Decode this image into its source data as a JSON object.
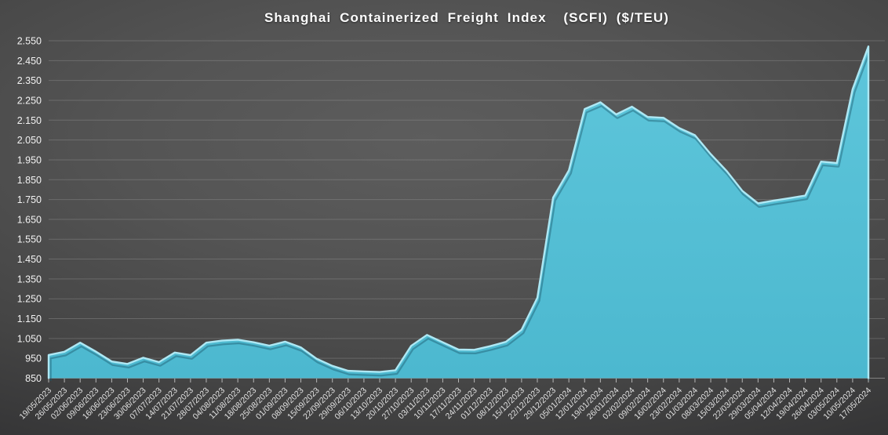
{
  "title": "Shanghai Containerized Freight Index  (SCFI) ($/TEU)",
  "chart_data": {
    "type": "area",
    "title": "Shanghai Containerized Freight Index  (SCFI) ($/TEU)",
    "xlabel": "",
    "ylabel": "",
    "ylim": [
      850,
      2550
    ],
    "y_tick_step": 100,
    "y_tick_labels": [
      "850",
      "950",
      "1.050",
      "1.150",
      "1.250",
      "1.350",
      "1.450",
      "1.550",
      "1.650",
      "1.750",
      "1.850",
      "1.950",
      "2.050",
      "2.150",
      "2.250",
      "2.350",
      "2.450",
      "2.550"
    ],
    "grid": true,
    "legend_position": "none",
    "x": [
      "19/05/2023",
      "26/05/2023",
      "02/06/2023",
      "09/06/2023",
      "16/06/2023",
      "23/06/2023",
      "30/06/2023",
      "07/07/2023",
      "14/07/2023",
      "21/07/2023",
      "28/07/2023",
      "04/08/2023",
      "11/08/2023",
      "18/08/2023",
      "25/08/2023",
      "01/09/2023",
      "08/09/2023",
      "15/09/2023",
      "22/09/2023",
      "29/09/2023",
      "06/10/2023",
      "13/10/2023",
      "20/10/2023",
      "27/10/2023",
      "03/11/2023",
      "10/11/2023",
      "17/11/2023",
      "24/11/2023",
      "01/12/2023",
      "08/12/2023",
      "15/12/2023",
      "22/12/2023",
      "29/12/2023",
      "05/01/2024",
      "12/01/2024",
      "19/01/2024",
      "26/01/2024",
      "02/02/2024",
      "09/02/2024",
      "16/02/2024",
      "23/02/2024",
      "01/03/2024",
      "08/03/2024",
      "15/03/2024",
      "22/03/2024",
      "29/03/2024",
      "05/04/2024",
      "12/04/2024",
      "19/04/2024",
      "26/04/2024",
      "03/05/2024",
      "10/05/2024",
      "17/05/2024"
    ],
    "series": [
      {
        "name": "SCFI ($/TEU)",
        "values": [
          967,
          983,
          1029,
          984,
          934,
          922,
          953,
          931,
          979,
          966,
          1029,
          1039,
          1044,
          1031,
          1014,
          1034,
          1005,
          948,
          912,
          887,
          884,
          881,
          890,
          1013,
          1068,
          1031,
          994,
          993,
          1011,
          1033,
          1094,
          1255,
          1760,
          1897,
          2206,
          2240,
          2179,
          2218,
          2166,
          2162,
          2110,
          2074,
          1979,
          1895,
          1794,
          1731,
          1745,
          1757,
          1770,
          1941,
          1934,
          2306,
          2521
        ]
      }
    ],
    "colors": {
      "area_fill": "#4cb8cf",
      "area_fill_light": "#5ec6db",
      "area_edge_highlight": "#aee8f4",
      "area_edge_shadow": "#1c5a6e",
      "gridline": "#9a9a9a",
      "baseline": "#a8a8a8",
      "tick_mark": "#b5b5b5",
      "y_label_color": "#f2f2f2",
      "x_label_color": "#e2e2e2",
      "title_color": "#fdfdfd",
      "background_center": "#575757",
      "background_edge": "#2a2a2c"
    }
  }
}
